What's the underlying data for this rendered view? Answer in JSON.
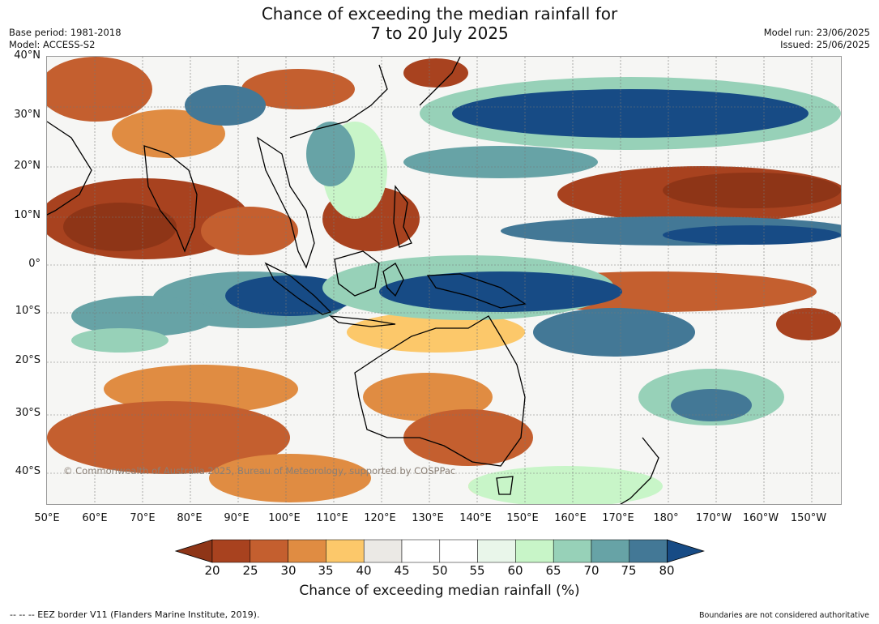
{
  "title": {
    "line1": "Chance of exceeding the median rainfall for",
    "line2": "7 to 20 July 2025"
  },
  "meta": {
    "base_period": "Base period: 1981-2018",
    "model": "Model: ACCESS-S2",
    "model_run": "Model run: 23/06/2025",
    "issued": "Issued: 25/06/2025"
  },
  "lat_labels": [
    "40°N",
    "30°N",
    "20°N",
    "10°N",
    "0°",
    "10°S",
    "20°S",
    "30°S",
    "40°S"
  ],
  "lon_labels": [
    "50°E",
    "60°E",
    "70°E",
    "80°E",
    "90°E",
    "100°E",
    "110°E",
    "120°E",
    "130°E",
    "140°E",
    "150°E",
    "160°E",
    "170°E",
    "180°",
    "170°W",
    "160°W",
    "150°W"
  ],
  "copyright": "© Commonwealth of Australia 2025, Bureau of Meteorology, supported by COSPPac",
  "colorbar": {
    "ticks": [
      "20",
      "25",
      "30",
      "35",
      "40",
      "45",
      "50",
      "55",
      "60",
      "65",
      "70",
      "75",
      "80"
    ],
    "colors": [
      "#8e3517",
      "#a8421f",
      "#c45f2f",
      "#e08c42",
      "#fcc86a",
      "#ebe9e5",
      "#ffffff",
      "#ffffff",
      "#e9f6ea",
      "#c8f5c8",
      "#97d1b8",
      "#67a3a6",
      "#437896",
      "#174b85"
    ],
    "title": "Chance of exceeding median rainfall (%)"
  },
  "footer": {
    "left": "--  --  -- EEZ border V11 (Flanders Marine Institute, 2019).",
    "right": "Boundaries are not considered authoritative"
  }
}
